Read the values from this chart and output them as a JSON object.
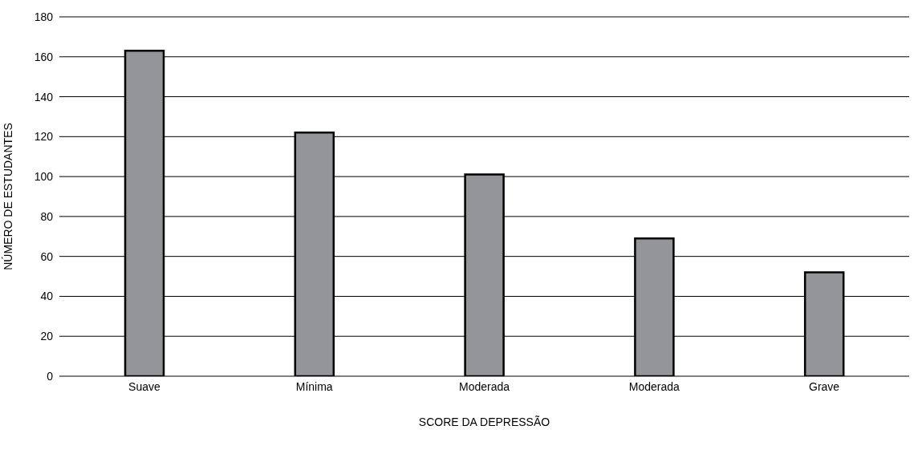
{
  "chart_data": {
    "type": "bar",
    "xlabel": "SCORE DA DEPRESSÃO",
    "ylabel": "NÚMERO DE ESTUDANTES",
    "categories": [
      "Suave",
      "Mínima",
      "Moderada",
      "Moderada",
      "Grave"
    ],
    "values": [
      163,
      122,
      101,
      69,
      52
    ],
    "color": "#939598",
    "ylim": [
      0,
      180
    ],
    "yticks": [
      0,
      20,
      40,
      60,
      80,
      100,
      120,
      140,
      160,
      180
    ],
    "grid": "y"
  }
}
